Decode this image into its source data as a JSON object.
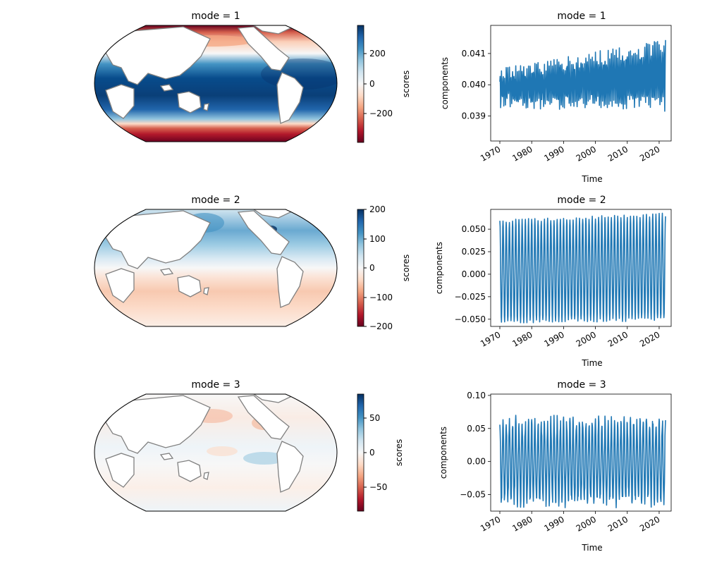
{
  "figure": {
    "map_colorbar_label": "scores",
    "ts_ylabel": "components",
    "ts_xlabel": "Time",
    "colormap": "RdBu",
    "land_color": "#ffffff",
    "coast_color": "#808080",
    "line_color": "#1f77b4"
  },
  "chart_data": [
    {
      "type": "heatmap",
      "title": "mode = 1",
      "projection": "Robinson (Pacific-centred)",
      "colorbar_label": "scores",
      "clim": [
        -380,
        380
      ],
      "colorbar_ticks": [
        -200,
        0,
        200
      ],
      "colorbar_tick_labels": [
        "−200",
        "0",
        "200"
      ],
      "pattern": "positive over tropics and mid-latitudes, strongly negative over polar/subpolar oceans"
    },
    {
      "type": "line",
      "title": "mode = 1",
      "xlabel": "Time",
      "ylabel": "components",
      "x_range": [
        1970,
        2022
      ],
      "xticks": [
        1970,
        1980,
        1990,
        2000,
        2010,
        2020
      ],
      "ylim": [
        0.0382,
        0.0419
      ],
      "yticks": [
        0.039,
        0.04,
        0.041
      ],
      "ytick_labels": [
        "0.039",
        "0.040",
        "0.041"
      ],
      "seasonal_cycle": {
        "mean_start": 0.0399,
        "mean_end": 0.0403,
        "amp_start": 0.0004,
        "amp_end": 0.0009,
        "periods_per_year": 2,
        "noise": 0.00025
      }
    },
    {
      "type": "heatmap",
      "title": "mode = 2",
      "projection": "Robinson (Pacific-centred)",
      "colorbar_label": "scores",
      "clim": [
        -200,
        200
      ],
      "colorbar_ticks": [
        -200,
        -100,
        0,
        100,
        200
      ],
      "colorbar_tick_labels": [
        "−200",
        "−100",
        "0",
        "100",
        "200"
      ],
      "pattern": "positive in northern hemisphere oceans, weakly negative in southern hemisphere"
    },
    {
      "type": "line",
      "title": "mode = 2",
      "xlabel": "Time",
      "ylabel": "components",
      "x_range": [
        1970,
        2022
      ],
      "xticks": [
        1970,
        1980,
        1990,
        2000,
        2010,
        2020
      ],
      "ylim": [
        -0.058,
        0.072
      ],
      "yticks": [
        -0.05,
        -0.025,
        0.0,
        0.025,
        0.05
      ],
      "ytick_labels": [
        "−0.050",
        "−0.025",
        "0.000",
        "0.025",
        "0.050"
      ],
      "seasonal_cycle": {
        "mean_start": 0.003,
        "mean_end": 0.008,
        "amp_start": 0.056,
        "amp_end": 0.058,
        "periods_per_year": 1,
        "noise": 0.002
      }
    },
    {
      "type": "heatmap",
      "title": "mode = 3",
      "projection": "Robinson (Pacific-centred)",
      "colorbar_label": "scores",
      "clim": [
        -85,
        85
      ],
      "colorbar_ticks": [
        -50,
        0,
        50
      ],
      "colorbar_tick_labels": [
        "−50",
        "0",
        "50"
      ],
      "pattern": "weak amplitudes; negative patches in north Pacific, positive in equatorial east Pacific"
    },
    {
      "type": "line",
      "title": "mode = 3",
      "xlabel": "Time",
      "ylabel": "components",
      "x_range": [
        1970,
        2022
      ],
      "xticks": [
        1970,
        1980,
        1990,
        2000,
        2010,
        2020
      ],
      "ylim": [
        -0.075,
        0.102
      ],
      "yticks": [
        -0.05,
        0.0,
        0.05,
        0.1
      ],
      "ytick_labels": [
        "−0.05",
        "0.00",
        "0.05",
        "0.10"
      ],
      "seasonal_cycle": {
        "mean_start": 0.0,
        "mean_end": 0.0,
        "amp_start": 0.06,
        "amp_end": 0.06,
        "periods_per_year": 1,
        "noise": 0.01
      }
    }
  ]
}
